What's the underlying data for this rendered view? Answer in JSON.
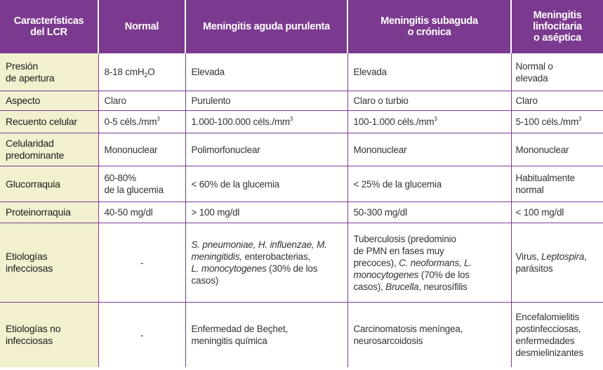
{
  "headers": [
    [
      "Características",
      "del LCR"
    ],
    [
      "Normal"
    ],
    [
      "Meningitis aguda purulenta"
    ],
    [
      "Meningitis subaguda",
      "o crónica"
    ],
    [
      "Meningitis",
      "linfocitaria",
      "o aséptica"
    ]
  ],
  "rows": {
    "presion": {
      "label": [
        "Presión",
        "de apertura"
      ],
      "normal_pre": "8-18 cmH",
      "normal_sub": "2",
      "normal_post": "O",
      "aguda": "Elevada",
      "subaguda": "Elevada",
      "linfocitaria": [
        "Normal o",
        "elevada"
      ]
    },
    "aspecto": {
      "label": "Aspecto",
      "normal": "Claro",
      "aguda": "Purulento",
      "subaguda": "Claro o turbio",
      "linfocitaria": "Claro"
    },
    "recuento": {
      "label": "Recuento celular",
      "unit_base": "céls./mm",
      "unit_exp": "3",
      "normal": "0-5",
      "aguda": "1.000-100.000",
      "subaguda": "100-1.000",
      "linfocitaria": "5-100"
    },
    "celularidad": {
      "label": [
        "Celularidad",
        "predominante"
      ],
      "normal": "Mononuclear",
      "aguda": "Polimorfonuclear",
      "subaguda": "Mononuclear",
      "linfocitaria": "Mononuclear"
    },
    "glucorraquia": {
      "label": "Glucorraquia",
      "normal": [
        "60-80%",
        "de la glucemia"
      ],
      "aguda": "< 60% de la glucemia",
      "subaguda": "< 25% de la glucemia",
      "linfocitaria": [
        "Habitualmente",
        "normal"
      ]
    },
    "proteinorraquia": {
      "label": "Proteinorraquia",
      "normal": "40-50 mg/dl",
      "aguda": "> 100 mg/dl",
      "subaguda": "50-300 mg/dl",
      "linfocitaria": "< 100 mg/dl"
    },
    "etiologias_inf": {
      "label": [
        "Etiologías",
        "infecciosas"
      ],
      "normal": "-",
      "aguda": {
        "spn": "S. pneumoniae, H. influenzae, M.",
        "mening": "meningitidis,",
        "enterobac": " enterobacterias,",
        "lmono": "L. monocytogenes",
        "pct": " (30% de los",
        "casos": "casos)"
      },
      "subaguda": {
        "l1": "Tuberculosis (predominio",
        "l2": "de PMN en fases muy",
        "l3a": "precoces), ",
        "l3b": "C. neoformans, L.",
        "l4a": "monocytogenes",
        "l4b": " (70% de los",
        "l5a": "casos), ",
        "l5b": "Brucella",
        "l5c": ", neurosífilis"
      },
      "linfocitaria": {
        "virus": "Virus, ",
        "lepto": "Leptospira",
        "comma": ",",
        "parasitos": "parásitos"
      }
    },
    "etiologias_noinf": {
      "label": [
        "Etiologías no",
        "infecciosas"
      ],
      "normal": "-",
      "aguda": [
        "Enfermedad de Beçhet,",
        "meningitis química"
      ],
      "subaguda": [
        "Carcinomatosis meníngea,",
        "neurosarcoidosis"
      ],
      "linfocitaria": [
        "Encefalomielitis",
        "postinfecciosas,",
        "enfermedades",
        "desmielinizantes"
      ]
    }
  },
  "colors": {
    "header_bg": "#7b3a8f",
    "label_bg": "#f3f0d0",
    "border": "#7b3a8f"
  }
}
